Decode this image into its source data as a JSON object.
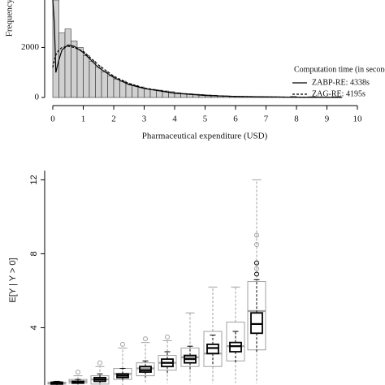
{
  "chart_data": [
    {
      "type": "histogram",
      "x_label": "Pharmaceutical expenditure (USD)",
      "y_label": "Frequency",
      "bins": [
        0,
        0.2,
        0.4,
        0.6,
        0.8,
        1,
        1.2,
        1.4,
        1.6,
        1.8,
        2,
        2.2,
        2.4,
        2.6,
        2.8,
        3,
        3.2,
        3.4,
        3.6,
        3.8,
        4,
        4.2,
        4.4,
        4.6,
        4.8,
        5,
        5.2,
        5.4,
        5.6,
        5.8,
        6,
        6.2,
        6.4,
        6.6,
        6.8,
        7,
        7.2,
        7.4,
        7.6,
        7.8,
        8,
        8.2,
        8.4,
        8.6,
        8.8,
        9,
        9.2,
        9.4
      ],
      "counts": [
        3900,
        2580,
        2740,
        2260,
        2000,
        1680,
        1450,
        1230,
        1030,
        870,
        740,
        650,
        550,
        480,
        420,
        350,
        320,
        290,
        260,
        230,
        190,
        160,
        150,
        130,
        120,
        100,
        90,
        70,
        60,
        50,
        40,
        35,
        30,
        25,
        20,
        18,
        15,
        12,
        10,
        40,
        8,
        6,
        30,
        5,
        4,
        3,
        25
      ],
      "color": "#d0d0d0",
      "legend_title": "Computation time (in second)",
      "legend": "right",
      "series": [
        {
          "name": "ZABP-RE: 4338s",
          "dash": "solid",
          "x": [
            0,
            0.05,
            0.1,
            0.2,
            0.3,
            0.5,
            0.7,
            1,
            1.5,
            2,
            2.5,
            3,
            4,
            5,
            6,
            8,
            9.5
          ],
          "values": [
            3900,
            3000,
            1000,
            1500,
            1900,
            2100,
            2050,
            1800,
            1200,
            800,
            520,
            360,
            170,
            80,
            40,
            10,
            3
          ]
        },
        {
          "name": "ZAG-RE: 4195s",
          "dash": "dashed",
          "x": [
            0,
            0.05,
            0.1,
            0.2,
            0.3,
            0.5,
            0.7,
            1,
            1.5,
            2,
            2.5,
            3,
            4,
            5,
            6,
            8,
            9.5
          ],
          "values": [
            1200,
            1500,
            1700,
            1900,
            2000,
            2050,
            2000,
            1850,
            1300,
            850,
            560,
            380,
            180,
            85,
            40,
            10,
            3
          ]
        }
      ],
      "xlim": [
        0,
        10
      ],
      "xticks": [
        0,
        1,
        2,
        3,
        4,
        5,
        6,
        7,
        8,
        9,
        10
      ],
      "ylim": [
        0,
        3900
      ],
      "yticks": [
        0,
        2000
      ]
    },
    {
      "type": "box",
      "y_label": "E[Y | Y > 0]",
      "ylim": [
        0.9,
        12.5
      ],
      "yticks": [
        4,
        8,
        12
      ],
      "series": [
        {
          "color": "#a0a0a0",
          "boxes": [
            {
              "q1": 0.95,
              "median": 1.0,
              "q3": 1.05,
              "whislo": 0.9,
              "whishi": 1.1,
              "outliers": []
            },
            {
              "q1": 1.0,
              "median": 1.1,
              "q3": 1.2,
              "whislo": 0.9,
              "whishi": 1.4,
              "outliers": [
                1.6
              ]
            },
            {
              "q1": 0.95,
              "median": 1.2,
              "q3": 1.4,
              "whislo": 0.9,
              "whishi": 1.9,
              "outliers": [
                2.1
              ]
            },
            {
              "q1": 1.2,
              "median": 1.5,
              "q3": 1.8,
              "whislo": 0.9,
              "whishi": 2.9,
              "outliers": [
                3.1
              ]
            },
            {
              "q1": 1.4,
              "median": 1.8,
              "q3": 2.1,
              "whislo": 1.0,
              "whishi": 3.2,
              "outliers": [
                3.4
              ]
            },
            {
              "q1": 1.7,
              "median": 2.1,
              "q3": 2.5,
              "whislo": 1.0,
              "whishi": 3.3,
              "outliers": [
                3.5
              ]
            },
            {
              "q1": 1.9,
              "median": 2.4,
              "q3": 2.9,
              "whislo": 1.0,
              "whishi": 4.8,
              "outliers": []
            },
            {
              "q1": 1.9,
              "median": 2.6,
              "q3": 3.8,
              "whislo": 1.0,
              "whishi": 6.2,
              "outliers": []
            },
            {
              "q1": 2.2,
              "median": 3.0,
              "q3": 4.3,
              "whislo": 1.0,
              "whishi": 6.2,
              "outliers": []
            },
            {
              "q1": 2.8,
              "median": 4.9,
              "q3": 6.5,
              "whislo": 1.0,
              "whishi": 12.0,
              "outliers": [
                7.2,
                8.5,
                9.0
              ]
            }
          ]
        },
        {
          "color": "#000000",
          "boxes": [
            {
              "q1": 0.95,
              "median": 1.0,
              "q3": 1.05,
              "whislo": 0.9,
              "whishi": 1.1,
              "outliers": []
            },
            {
              "q1": 1.0,
              "median": 1.05,
              "q3": 1.1,
              "whislo": 0.95,
              "whishi": 1.2,
              "outliers": []
            },
            {
              "q1": 1.1,
              "median": 1.2,
              "q3": 1.3,
              "whislo": 1.0,
              "whishi": 1.5,
              "outliers": []
            },
            {
              "q1": 1.3,
              "median": 1.4,
              "q3": 1.5,
              "whislo": 1.1,
              "whishi": 1.8,
              "outliers": []
            },
            {
              "q1": 1.6,
              "median": 1.7,
              "q3": 1.9,
              "whislo": 1.3,
              "whishi": 2.2,
              "outliers": []
            },
            {
              "q1": 1.9,
              "median": 2.1,
              "q3": 2.3,
              "whislo": 1.5,
              "whishi": 2.7,
              "outliers": []
            },
            {
              "q1": 2.1,
              "median": 2.3,
              "q3": 2.5,
              "whislo": 1.7,
              "whishi": 3.0,
              "outliers": []
            },
            {
              "q1": 2.6,
              "median": 2.9,
              "q3": 3.1,
              "whislo": 2.0,
              "whishi": 3.6,
              "outliers": []
            },
            {
              "q1": 2.7,
              "median": 3.0,
              "q3": 3.2,
              "whislo": 2.1,
              "whishi": 3.8,
              "outliers": []
            },
            {
              "q1": 3.7,
              "median": 4.2,
              "q3": 4.8,
              "whislo": 2.6,
              "whishi": 6.6,
              "outliers": [
                6.9,
                7.5
              ]
            }
          ]
        }
      ]
    }
  ]
}
